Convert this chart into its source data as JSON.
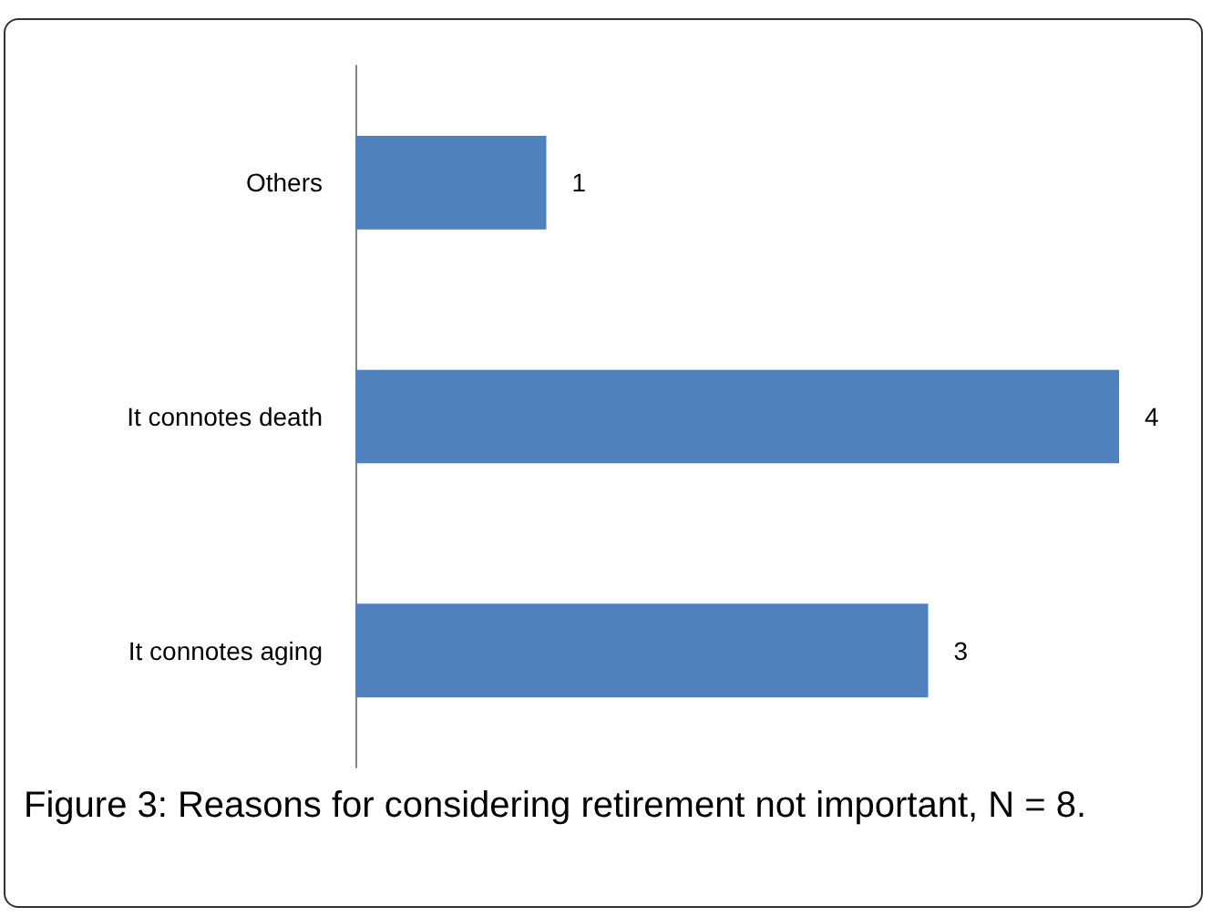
{
  "chart_data": {
    "type": "bar",
    "orientation": "horizontal",
    "categories": [
      "Others",
      "It connotes death",
      "It connotes aging"
    ],
    "values": [
      1,
      4,
      3
    ],
    "color": "#4f81bd",
    "data_labels": true,
    "annotations": [
      "Figure 3: Reasons for considering retirement not important, N = 8."
    ]
  }
}
